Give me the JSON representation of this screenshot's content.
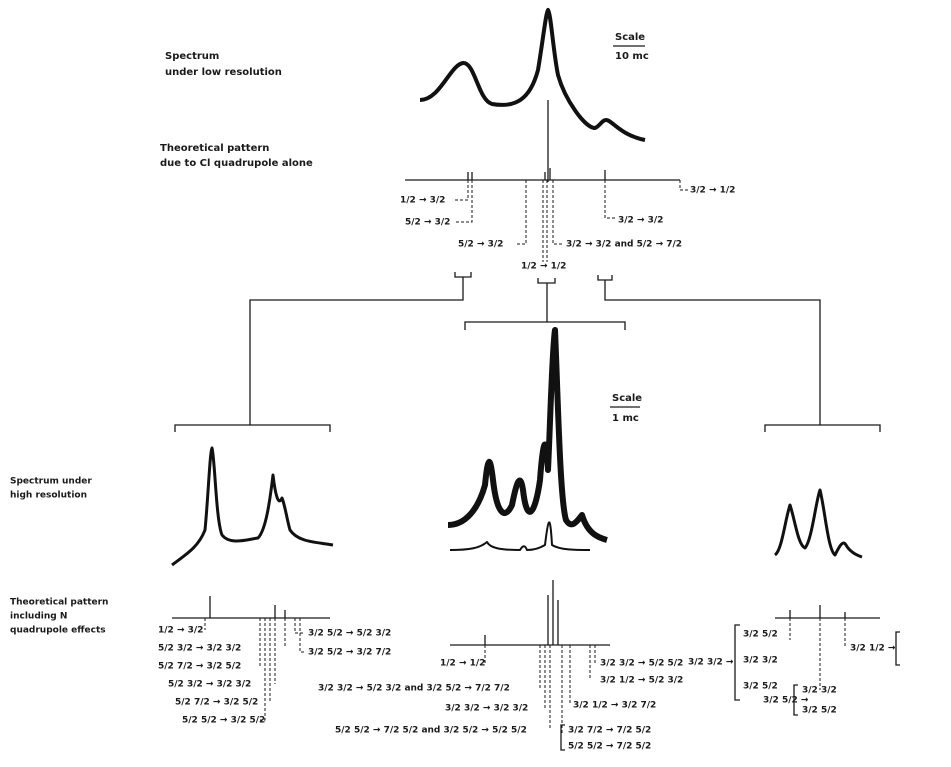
{
  "top": {
    "label_lines": [
      "Spectrum",
      "under low resolution"
    ],
    "scale": [
      "Scale",
      "10 mc"
    ],
    "theory_lines": [
      "Theoretical pattern",
      "due to Cl quadrupole alone"
    ],
    "transitions": [
      "1/2 → 3/2",
      "5/2 → 3/2",
      "3/2 → 3/2",
      "5/2 → 3/2",
      "3/2 → 3/2 and 5/2 → 7/2",
      "1/2 → 1/2",
      "3/2 → 1/2"
    ]
  },
  "bottom": {
    "label_lines": [
      "Spectrum under",
      "high resolution"
    ],
    "scale": [
      "Scale",
      "1 mc"
    ],
    "theory_lines": [
      "Theoretical pattern",
      "including N",
      "quadrupole effects"
    ],
    "left_transitions": [
      "1/2 → 3/2",
      "5/2 3/2 → 3/2 3/2",
      "5/2 7/2 → 3/2 5/2",
      "5/2 3/2 → 3/2 3/2",
      "5/2 7/2 → 3/2 5/2",
      "5/2 5/2 → 3/2 5/2",
      "3/2 5/2 → 5/2 3/2",
      "3/2 5/2 → 3/2 7/2"
    ],
    "middle_transitions": [
      "1/2 → 1/2",
      "3/2 3/2 → 5/2 3/2 and 3/2 5/2 → 7/2 7/2",
      "3/2 3/2 → 3/2 3/2",
      "5/2 5/2 → 7/2 5/2 and 3/2 5/2 → 5/2 5/2",
      "3/2 3/2 → 5/2 5/2",
      "3/2 1/2 → 5/2 3/2",
      "3/2 1/2 → 3/2 7/2",
      "3/2 7/2 → 7/2 5/2",
      "5/2 5/2 → 7/2 5/2"
    ],
    "right_transitions": [
      "3/2 3/2 →",
      "3/2 5/2",
      "3/2 3/2",
      "3/2 5/2",
      "3/2 1/2 →",
      "3/2 5/2 →",
      "3/2 3/2",
      "3/2 5/2"
    ]
  }
}
